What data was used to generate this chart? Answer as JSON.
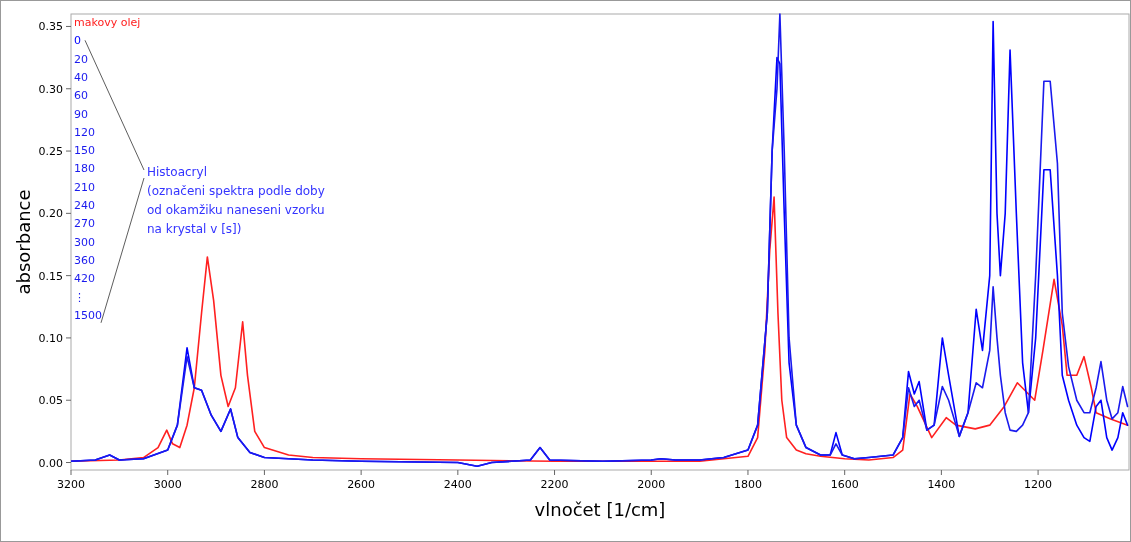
{
  "chart_data": {
    "type": "line",
    "xlabel": "vlnočet [1/cm]",
    "ylabel": "absorbance",
    "xlim": [
      3200,
      1012
    ],
    "ylim": [
      -0.006,
      0.36
    ],
    "xticks": [
      3200,
      3000,
      2800,
      2600,
      2400,
      2200,
      2000,
      1800,
      1600,
      1400,
      1200
    ],
    "yticks": [
      {
        "value": 0,
        "label": "0.00"
      },
      {
        "value": 0.05,
        "label": "0.05"
      },
      {
        "value": 0.1,
        "label": "0.10"
      },
      {
        "value": 0.15,
        "label": "0.15"
      },
      {
        "value": 0.2,
        "label": "0.20"
      },
      {
        "value": 0.25,
        "label": "0.25"
      },
      {
        "value": 0.3,
        "label": "0.30"
      },
      {
        "value": 0.35,
        "label": "0.35"
      }
    ],
    "legend": "top left",
    "grid": false,
    "marker": "none",
    "line_style": "solid",
    "annotations": [
      "20",
      "40",
      "60",
      "90",
      "120",
      "150",
      "180",
      "210",
      "240",
      "270",
      "300",
      "360",
      "420",
      "⋮",
      "Histoacryl\n(označeni spektra podle doby\nod okamžiku naneseni vzorku\nna krystal v [s])"
    ],
    "series": [
      {
        "name": "makovy olej",
        "color": "#ff2020",
        "x": [
          3200,
          3100,
          3050,
          3020,
          3002,
          2990,
          2975,
          2960,
          2945,
          2930,
          2918,
          2905,
          2890,
          2875,
          2860,
          2845,
          2835,
          2820,
          2800,
          2750,
          2700,
          2600,
          2400,
          2200,
          2000,
          1900,
          1800,
          1780,
          1765,
          1755,
          1746,
          1738,
          1730,
          1720,
          1700,
          1680,
          1650,
          1600,
          1550,
          1500,
          1480,
          1465,
          1450,
          1420,
          1390,
          1370,
          1330,
          1300,
          1270,
          1243,
          1207,
          1190,
          1167,
          1150,
          1140,
          1120,
          1105,
          1090,
          1080,
          1050,
          1015
        ],
        "values": [
          0.001,
          0.002,
          0.004,
          0.012,
          0.026,
          0.015,
          0.012,
          0.03,
          0.06,
          0.12,
          0.165,
          0.13,
          0.07,
          0.045,
          0.06,
          0.113,
          0.07,
          0.025,
          0.012,
          0.006,
          0.004,
          0.003,
          0.002,
          0.001,
          0.001,
          0.001,
          0.005,
          0.02,
          0.09,
          0.17,
          0.213,
          0.12,
          0.05,
          0.02,
          0.01,
          0.007,
          0.005,
          0.003,
          0.002,
          0.004,
          0.01,
          0.055,
          0.045,
          0.02,
          0.036,
          0.03,
          0.027,
          0.03,
          0.045,
          0.064,
          0.05,
          0.09,
          0.147,
          0.11,
          0.07,
          0.07,
          0.085,
          0.06,
          0.04,
          0.035,
          0.03
        ]
      },
      {
        "name": "0",
        "color": "#0000ff",
        "x": [
          3200,
          3150,
          3120,
          3100,
          3050,
          3000,
          2980,
          2960,
          2945,
          2930,
          2910,
          2890,
          2870,
          2855,
          2830,
          2800,
          2700,
          2600,
          2400,
          2360,
          2330,
          2250,
          2230,
          2210,
          2100,
          2000,
          1980,
          1950,
          1900,
          1850,
          1800,
          1780,
          1760,
          1750,
          1740,
          1734,
          1725,
          1715,
          1700,
          1680,
          1650,
          1630,
          1618,
          1605,
          1580,
          1550,
          1500,
          1480,
          1468,
          1456,
          1446,
          1430,
          1415,
          1398,
          1385,
          1363,
          1345,
          1328,
          1315,
          1300,
          1293,
          1285,
          1278,
          1268,
          1258,
          1245,
          1232,
          1220,
          1205,
          1188,
          1175,
          1160,
          1150,
          1137,
          1120,
          1105,
          1093,
          1080,
          1070,
          1058,
          1047,
          1035,
          1025,
          1015
        ],
        "values": [
          0.001,
          0.002,
          0.006,
          0.002,
          0.003,
          0.01,
          0.03,
          0.092,
          0.06,
          0.058,
          0.038,
          0.025,
          0.043,
          0.02,
          0.008,
          0.004,
          0.002,
          0.001,
          0.0,
          -0.003,
          0.0,
          0.002,
          0.012,
          0.002,
          0.001,
          0.002,
          0.003,
          0.002,
          0.002,
          0.004,
          0.01,
          0.03,
          0.12,
          0.25,
          0.325,
          0.32,
          0.2,
          0.08,
          0.03,
          0.012,
          0.006,
          0.006,
          0.024,
          0.006,
          0.003,
          0.004,
          0.006,
          0.02,
          0.073,
          0.055,
          0.065,
          0.026,
          0.03,
          0.1,
          0.07,
          0.021,
          0.04,
          0.123,
          0.09,
          0.15,
          0.354,
          0.2,
          0.15,
          0.2,
          0.331,
          0.2,
          0.08,
          0.04,
          0.1,
          0.235,
          0.235,
          0.15,
          0.07,
          0.05,
          0.03,
          0.02,
          0.017,
          0.045,
          0.05,
          0.02,
          0.01,
          0.02,
          0.04,
          0.03
        ]
      },
      {
        "name": "1500",
        "color": "#1a1aee",
        "x": [
          3200,
          3150,
          3120,
          3100,
          3050,
          3000,
          2980,
          2960,
          2945,
          2930,
          2910,
          2890,
          2870,
          2855,
          2830,
          2800,
          2700,
          2600,
          2400,
          2360,
          2330,
          2250,
          2230,
          2210,
          2100,
          2000,
          1980,
          1950,
          1900,
          1850,
          1800,
          1780,
          1760,
          1750,
          1740,
          1734,
          1725,
          1715,
          1700,
          1680,
          1650,
          1630,
          1618,
          1605,
          1580,
          1550,
          1500,
          1480,
          1468,
          1456,
          1446,
          1430,
          1415,
          1398,
          1385,
          1363,
          1345,
          1328,
          1315,
          1300,
          1293,
          1285,
          1278,
          1268,
          1258,
          1245,
          1232,
          1220,
          1205,
          1188,
          1175,
          1160,
          1150,
          1137,
          1120,
          1105,
          1093,
          1080,
          1070,
          1058,
          1047,
          1035,
          1025,
          1015
        ],
        "values": [
          0.001,
          0.002,
          0.006,
          0.002,
          0.003,
          0.01,
          0.03,
          0.085,
          0.06,
          0.058,
          0.038,
          0.025,
          0.043,
          0.02,
          0.008,
          0.004,
          0.002,
          0.001,
          0.0,
          -0.003,
          0.0,
          0.002,
          0.012,
          0.002,
          0.001,
          0.002,
          0.003,
          0.002,
          0.002,
          0.004,
          0.01,
          0.03,
          0.12,
          0.25,
          0.3,
          0.36,
          0.25,
          0.1,
          0.03,
          0.012,
          0.006,
          0.006,
          0.015,
          0.006,
          0.003,
          0.004,
          0.006,
          0.02,
          0.06,
          0.045,
          0.05,
          0.026,
          0.03,
          0.061,
          0.05,
          0.021,
          0.04,
          0.064,
          0.06,
          0.09,
          0.141,
          0.1,
          0.07,
          0.04,
          0.026,
          0.025,
          0.03,
          0.04,
          0.15,
          0.306,
          0.306,
          0.24,
          0.12,
          0.077,
          0.05,
          0.04,
          0.04,
          0.06,
          0.081,
          0.05,
          0.035,
          0.04,
          0.061,
          0.045
        ]
      }
    ]
  }
}
